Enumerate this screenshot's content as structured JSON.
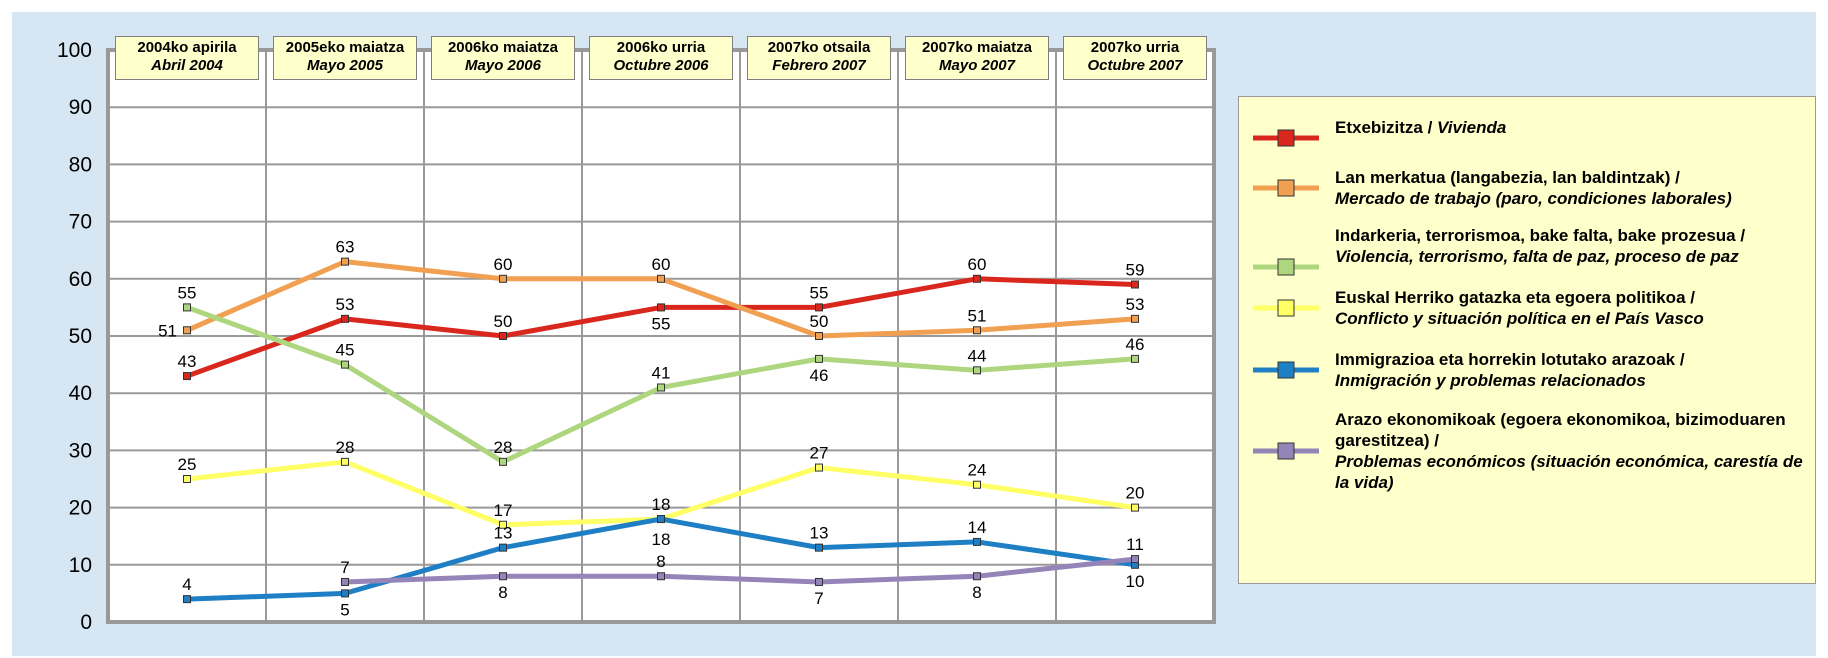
{
  "chart_data": {
    "type": "line",
    "ylim": [
      0,
      100
    ],
    "yticks": [
      0,
      10,
      20,
      30,
      40,
      50,
      60,
      70,
      80,
      90,
      100
    ],
    "grid": true,
    "legend_placement": "right",
    "categories": [
      {
        "eu": "2004ko apirila",
        "es": "Abril 2004"
      },
      {
        "eu": "2005eko maiatza",
        "es": "Mayo 2005"
      },
      {
        "eu": "2006ko maiatza",
        "es": "Mayo 2006"
      },
      {
        "eu": "2006ko urria",
        "es": "Octubre 2006"
      },
      {
        "eu": "2007ko otsaila",
        "es": "Febrero 2007"
      },
      {
        "eu": "2007ko maiatza",
        "es": "Mayo 2007"
      },
      {
        "eu": "2007ko urria",
        "es": "Octubre 2007"
      }
    ],
    "series": [
      {
        "name_eu": "Etxebizitza / ",
        "name_es": "Vivienda",
        "color": "#d9271e",
        "values": [
          43,
          53,
          50,
          55,
          55,
          60,
          59
        ],
        "label_pos": [
          "above",
          "above",
          "above",
          "below",
          "above",
          "above",
          "above"
        ]
      },
      {
        "name_eu": "Lan merkatua (langabezia, lan baldintzak) /",
        "name_es": "Mercado de trabajo (paro, condiciones laborales)",
        "color": "#f0a050",
        "values": [
          51,
          63,
          60,
          60,
          50,
          51,
          53
        ],
        "label_pos": [
          "left",
          "above",
          "above",
          "above",
          "above",
          "above",
          "above"
        ]
      },
      {
        "name_eu": "Indarkeria, terrorismoa, bake falta, bake prozesua /",
        "name_es": "Violencia, terrorismo, falta de paz, proceso de paz",
        "color": "#aed67e",
        "values": [
          55,
          45,
          28,
          41,
          46,
          44,
          46
        ],
        "label_pos": [
          "above",
          "above",
          "above",
          "above",
          "below",
          "above",
          "above"
        ]
      },
      {
        "name_eu": "Euskal Herriko gatazka eta egoera politikoa /",
        "name_es": "Conflicto y  situación política en el País Vasco",
        "color": "#ffff66",
        "values": [
          25,
          28,
          17,
          18,
          27,
          24,
          20
        ],
        "label_pos": [
          "above",
          "above",
          "above",
          "none",
          "above",
          "above",
          "above"
        ]
      },
      {
        "name_eu": "Immigrazioa eta horrekin lotutako arazoak /",
        "name_es": "Inmigración y problemas relacionados",
        "color": "#1f7fc4",
        "values": [
          4,
          5,
          13,
          18,
          13,
          14,
          10
        ],
        "label_pos": [
          "above",
          "below",
          "above",
          "dual",
          "above",
          "above",
          "below"
        ]
      },
      {
        "name_eu": "Arazo ekonomikoak (egoera ekonomikoa, bizimoduaren garestitzea) /",
        "name_es": "Problemas económicos (situación económica, carestía de la vida)",
        "color": "#9484b8",
        "values": [
          null,
          7,
          8,
          8,
          7,
          8,
          11
        ],
        "label_pos": [
          "none",
          "above",
          "below",
          "above",
          "below",
          "below",
          "above"
        ]
      }
    ]
  }
}
